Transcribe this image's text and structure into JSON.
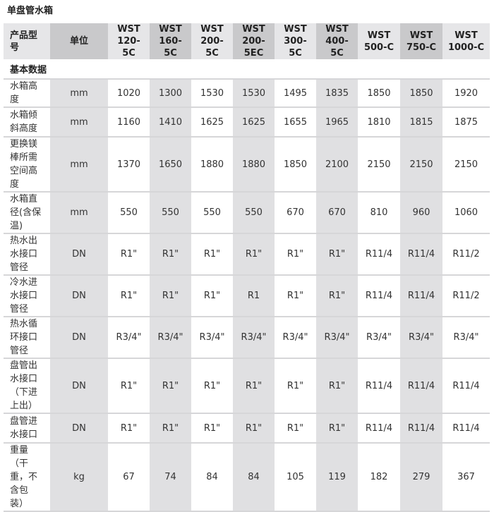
{
  "title": "单盘管水箱",
  "header": {
    "label": "产品型号",
    "unit": "单位",
    "models": [
      "WST 120-5C",
      "WST 160-5C",
      "WST 200-5C",
      "WST 200-5EC",
      "WST 300-5C",
      "WST 400-5C",
      "WST 500-C",
      "WST 750-C",
      "WST 1000-C"
    ]
  },
  "section": "基本数据",
  "rows": [
    {
      "label": "水箱高度",
      "unit": "mm",
      "values": [
        "1020",
        "1300",
        "1530",
        "1530",
        "1495",
        "1835",
        "1850",
        "1850",
        "1920"
      ]
    },
    {
      "label": "水箱倾斜高度",
      "unit": "mm",
      "values": [
        "1160",
        "1410",
        "1625",
        "1625",
        "1655",
        "1965",
        "1810",
        "1815",
        "1875"
      ]
    },
    {
      "label": "更换镁棒所需空间高度",
      "unit": "mm",
      "values": [
        "1370",
        "1650",
        "1880",
        "1880",
        "1850",
        "2100",
        "2150",
        "2150",
        "2150"
      ]
    },
    {
      "label": "水箱直径(含保温)",
      "unit": "mm",
      "values": [
        "550",
        "550",
        "550",
        "550",
        "670",
        "670",
        "810",
        "960",
        "1060"
      ]
    },
    {
      "label": "热水出水接口管径",
      "unit": "DN",
      "values": [
        "R1\"",
        "R1\"",
        "R1\"",
        "R1\"",
        "R1\"",
        "R1\"",
        "R11/4",
        "R11/4",
        "R11/2"
      ]
    },
    {
      "label": "冷水进水接口管径",
      "unit": "DN",
      "values": [
        "R1\"",
        "R1\"",
        "R1\"",
        "R1",
        "R1\"",
        "R1\"",
        "R11/4",
        "R11/4",
        "R11/2"
      ]
    },
    {
      "label": "热水循环接口管径",
      "unit": "DN",
      "values": [
        "R3/4\"",
        "R3/4\"",
        "R3/4\"",
        "R3/4\"",
        "R3/4\"",
        "R3/4\"",
        "R3/4\"",
        "R3/4\"",
        "R3/4\""
      ]
    },
    {
      "label": "盘管出水接口（下进上出）",
      "unit": "DN",
      "values": [
        "R1\"",
        "R1\"",
        "R1\"",
        "R1\"",
        "R1\"",
        "R1\"",
        "R11/4",
        "R11/4",
        "R11/4"
      ]
    },
    {
      "label": "盘管进水接口",
      "unit": "DN",
      "values": [
        "R1\"",
        "R1\"",
        "R1\"",
        "R1\"",
        "R1\"",
        "R1\"",
        "R11/4",
        "R11/4",
        "R11/4"
      ]
    },
    {
      "label": "重量（干重，不含包装）",
      "unit": "kg",
      "values": [
        "67",
        "74",
        "84",
        "84",
        "105",
        "119",
        "182",
        "279",
        "367"
      ]
    }
  ]
}
